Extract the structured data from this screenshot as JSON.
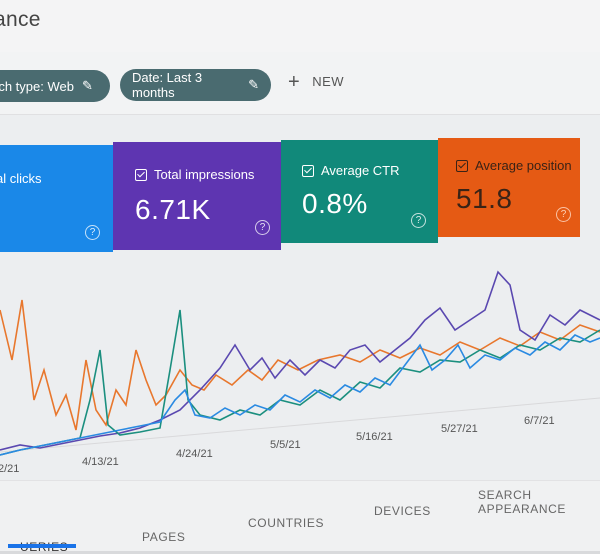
{
  "header": {
    "title": "ance"
  },
  "filters": {
    "search_type": "rch type: Web",
    "date": "Date: Last 3 months",
    "new_label": "NEW"
  },
  "cards": {
    "clicks": {
      "label": "al clicks",
      "value": ""
    },
    "impressions": {
      "label": "Total impressions",
      "value": "6.71K"
    },
    "ctr": {
      "label": "Average CTR",
      "value": "0.8%"
    },
    "position": {
      "label": "Average position",
      "value": "51.8"
    }
  },
  "colors": {
    "clicks": "#1a88e8",
    "impressions": "#5e35b1",
    "ctr": "#11897a",
    "position": "#e55a14"
  },
  "chart_data": {
    "type": "line",
    "x_ticks": [
      "2/21",
      "4/13/21",
      "4/24/21",
      "5/5/21",
      "5/16/21",
      "5/27/21",
      "6/7/21"
    ],
    "series": [
      {
        "color": "#e8772d"
      },
      {
        "color": "#5a48b0"
      },
      {
        "color": "#1b8f7f"
      },
      {
        "color": "#2a8ae2"
      }
    ]
  },
  "tabs": {
    "queries": "UERIES",
    "pages": "PAGES",
    "countries": "COUNTRIES",
    "devices": "DEVICES",
    "search_appearance": "SEARCH APPEARANCE"
  }
}
